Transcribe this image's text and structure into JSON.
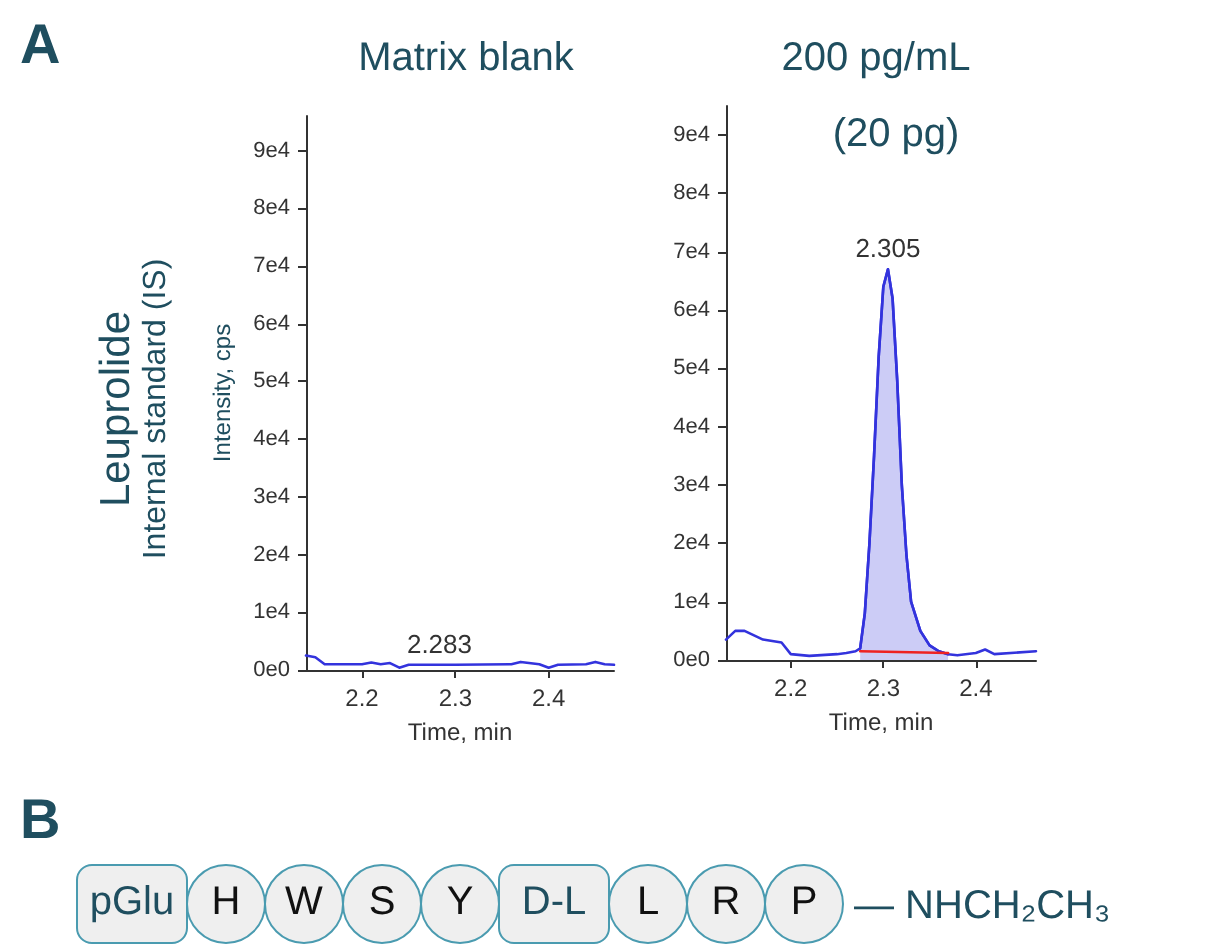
{
  "chart_data": [
    {
      "type": "line",
      "title": "Matrix blank",
      "xlabel": "Time, min",
      "ylabel": "Intensity, cps",
      "marker": "none",
      "annotations": [
        "A",
        "Leuprolide",
        "Internal standard (IS)",
        {
          "text": "2.283",
          "x": 2.283,
          "y": 900
        }
      ],
      "xlim": [
        2.14,
        2.47
      ],
      "xticks": [
        2.2,
        2.3,
        2.4
      ],
      "ylim": [
        0,
        96000
      ],
      "yticks": [
        {
          "value": 0,
          "label": "0e0"
        },
        {
          "value": 10000,
          "label": "1e4"
        },
        {
          "value": 20000,
          "label": "2e4"
        },
        {
          "value": 30000,
          "label": "3e4"
        },
        {
          "value": 40000,
          "label": "4e4"
        },
        {
          "value": 50000,
          "label": "5e4"
        },
        {
          "value": 60000,
          "label": "6e4"
        },
        {
          "value": 70000,
          "label": "7e4"
        },
        {
          "value": 80000,
          "label": "8e4"
        },
        {
          "value": 90000,
          "label": "9e4"
        }
      ],
      "series": [
        {
          "color": "#3333dd",
          "x": [
            2.14,
            2.15,
            2.16,
            2.2,
            2.21,
            2.22,
            2.23,
            2.24,
            2.25,
            2.3,
            2.36,
            2.37,
            2.39,
            2.4,
            2.41,
            2.44,
            2.45,
            2.46,
            2.47
          ],
          "values": [
            2500,
            2200,
            1000,
            1000,
            1300,
            1000,
            1200,
            400,
            900,
            900,
            1000,
            1400,
            1000,
            400,
            900,
            1000,
            1400,
            1000,
            900
          ]
        }
      ]
    },
    {
      "type": "line",
      "title": "200 pg/mL",
      "subtitle": "(20 pg)",
      "xlabel": "Time, min",
      "marker": "none",
      "annotations": [
        {
          "text": "2.305",
          "x": 2.305,
          "y": 67000
        }
      ],
      "xlim": [
        2.13,
        2.465
      ],
      "xticks": [
        2.2,
        2.3,
        2.4
      ],
      "ylim": [
        0,
        95000
      ],
      "yticks": [
        {
          "value": 0,
          "label": "0e0"
        },
        {
          "value": 10000,
          "label": "1e4"
        },
        {
          "value": 20000,
          "label": "2e4"
        },
        {
          "value": 30000,
          "label": "3e4"
        },
        {
          "value": 40000,
          "label": "4e4"
        },
        {
          "value": 50000,
          "label": "5e4"
        },
        {
          "value": 60000,
          "label": "6e4"
        },
        {
          "value": 70000,
          "label": "7e4"
        },
        {
          "value": 80000,
          "label": "8e4"
        },
        {
          "value": 90000,
          "label": "9e4"
        }
      ],
      "series": [
        {
          "color": "#3333dd",
          "x": [
            2.13,
            2.14,
            2.15,
            2.17,
            2.19,
            2.2,
            2.22,
            2.25,
            2.26,
            2.27,
            2.275,
            2.28,
            2.285,
            2.29,
            2.295,
            2.3,
            2.305,
            2.31,
            2.315,
            2.32,
            2.325,
            2.33,
            2.34,
            2.35,
            2.36,
            2.37,
            2.38,
            2.4,
            2.41,
            2.42,
            2.465
          ],
          "values": [
            3500,
            5000,
            5000,
            3500,
            3000,
            1000,
            700,
            1000,
            1200,
            1500,
            2000,
            8000,
            20000,
            35000,
            52000,
            64000,
            67000,
            62000,
            48000,
            30000,
            18000,
            10000,
            5000,
            2500,
            1500,
            1000,
            800,
            1200,
            1800,
            1000,
            1500
          ]
        },
        {
          "type": "area",
          "color": "#3333dd",
          "x": [
            2.275,
            2.28,
            2.285,
            2.29,
            2.295,
            2.3,
            2.305,
            2.31,
            2.315,
            2.32,
            2.325,
            2.33,
            2.34,
            2.35,
            2.36,
            2.37
          ],
          "values": [
            2000,
            8000,
            20000,
            35000,
            52000,
            64000,
            67000,
            62000,
            48000,
            30000,
            18000,
            10000,
            5000,
            2500,
            1500,
            1000
          ]
        },
        {
          "color": "#ee2222",
          "x": [
            2.275,
            2.37
          ],
          "values": [
            1500,
            1200
          ]
        }
      ]
    },
    {
      "type": "other",
      "annotations": [
        "B",
        "pGlu",
        "H",
        "W",
        "S",
        "Y",
        "D-L",
        "L",
        "R",
        "P",
        "— NHCH₂CH₃"
      ]
    }
  ]
}
